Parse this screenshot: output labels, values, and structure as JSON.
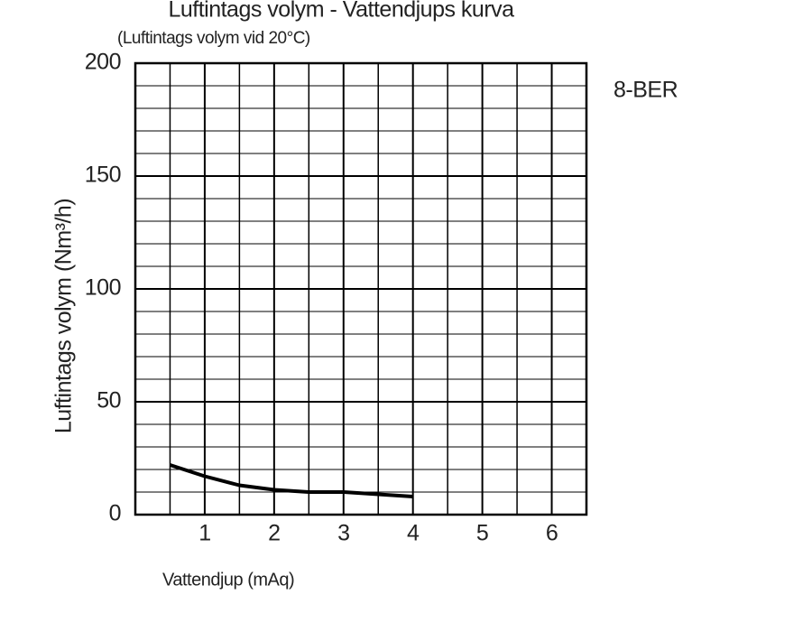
{
  "chart_data": {
    "type": "line",
    "title": "Luftintags volym - Vattendjups kurva",
    "subtitle": "(Luftintags volym vid 20°C)",
    "x_label": "Vattendjup (mAq)",
    "y_label": "Luftintags volym (Nm³/h)",
    "annotation": "8-BER",
    "x": [
      0.5,
      1,
      1.5,
      2,
      2.5,
      3,
      3.5,
      4
    ],
    "series": [
      {
        "name": "8-BER",
        "color": "#000000",
        "values": [
          22,
          17,
          13,
          11,
          10,
          10,
          9,
          8
        ]
      }
    ],
    "xlim": [
      0,
      6.5
    ],
    "xticks": [
      1,
      2,
      3,
      4,
      5,
      6
    ],
    "x_minor_ticks": [
      0.5,
      1.5,
      2.5,
      3.5,
      4.5,
      5.5
    ],
    "ylim": [
      0,
      200
    ],
    "yticks": [
      0,
      50,
      100,
      150,
      200
    ],
    "y_minor_ticks": [
      10,
      20,
      30,
      40,
      60,
      70,
      80,
      90,
      110,
      120,
      130,
      140,
      160,
      170,
      180,
      190
    ],
    "grid": true
  }
}
